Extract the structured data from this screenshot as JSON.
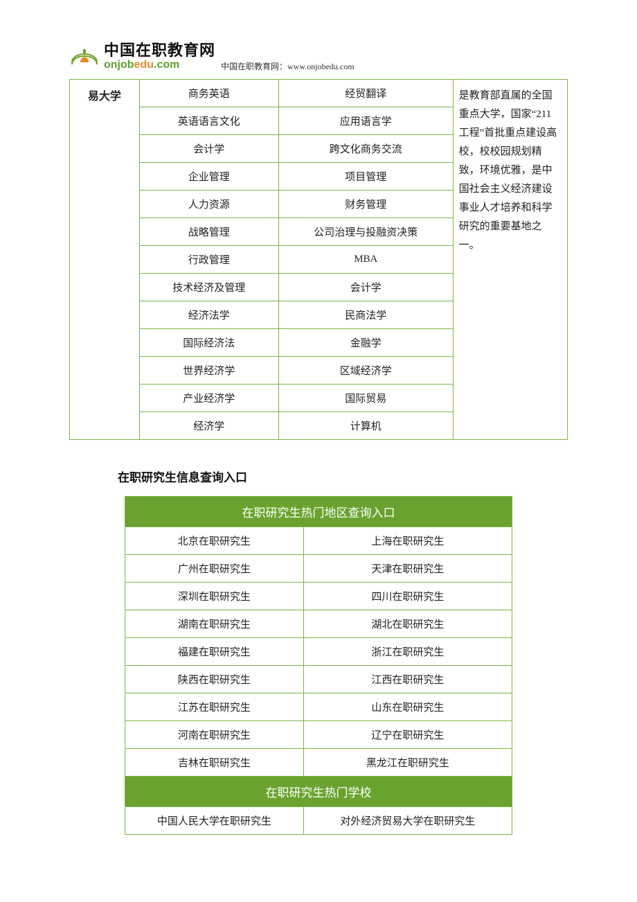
{
  "header": {
    "logo_top": "中国在职教育网",
    "logo_bottom_green": "onjob",
    "logo_bottom_orange": "edu",
    "logo_bottom_green2": ".com",
    "site_caption": "中国在职教育网：www.onjobedu.com"
  },
  "spec_table": {
    "border_color": "#7ab648",
    "col_widths_pct": [
      14,
      28,
      35,
      23
    ],
    "univ_label": "易大学",
    "rows": [
      {
        "c1": "商务英语",
        "c2": "经贸翻译"
      },
      {
        "c1": "英语语言文化",
        "c2": "应用语言学"
      },
      {
        "c1": "会计学",
        "c2": "跨文化商务交流"
      },
      {
        "c1": "企业管理",
        "c2": "项目管理"
      },
      {
        "c1": "人力资源",
        "c2": "财务管理"
      },
      {
        "c1": "战略管理",
        "c2": "公司治理与投融资决策"
      },
      {
        "c1": "行政管理",
        "c2": "MBA"
      },
      {
        "c1": "技术经济及管理",
        "c2": "会计学"
      },
      {
        "c1": "经济法学",
        "c2": "民商法学"
      },
      {
        "c1": "国际经济法",
        "c2": "金融学"
      },
      {
        "c1": "世界经济学",
        "c2": "区域经济学"
      },
      {
        "c1": "产业经济学",
        "c2": "国际贸易"
      },
      {
        "c1": "经济学",
        "c2": "计算机"
      }
    ],
    "desc": "是教育部直属的全国重点大学，国家“211 工程”首批重点建设高校，校校园规划精致，环境优雅，是中国社会主义经济建设事业人才培养和科学研究的重要基地之一。"
  },
  "section_title": "在职研究生信息查询入口",
  "region_table": {
    "border_color": "#7ab648",
    "header_bg": "#6aa22f",
    "header_fg": "#ffffff",
    "header1": "在职研究生热门地区查询入口",
    "regions": [
      {
        "l": "北京在职研究生",
        "r": "上海在职研究生"
      },
      {
        "l": "广州在职研究生",
        "r": "天津在职研究生"
      },
      {
        "l": "深圳在职研究生",
        "r": "四川在职研究生"
      },
      {
        "l": "湖南在职研究生",
        "r": "湖北在职研究生"
      },
      {
        "l": "福建在职研究生",
        "r": "浙江在职研究生"
      },
      {
        "l": "陕西在职研究生",
        "r": "江西在职研究生"
      },
      {
        "l": "江苏在职研究生",
        "r": "山东在职研究生"
      },
      {
        "l": "河南在职研究生",
        "r": "辽宁在职研究生"
      },
      {
        "l": "吉林在职研究生",
        "r": "黑龙江在职研究生"
      }
    ],
    "header2": "在职研究生热门学校",
    "schools": [
      {
        "l": "中国人民大学在职研究生",
        "r": "对外经济贸易大学在职研究生"
      }
    ]
  }
}
